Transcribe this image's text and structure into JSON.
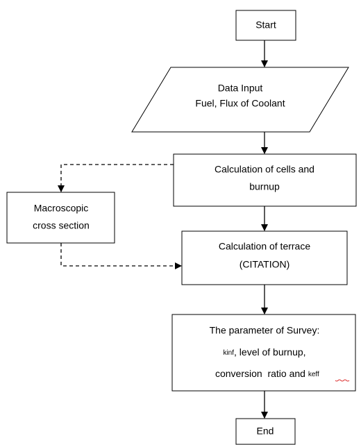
{
  "nodes": [
    {
      "label": "Start"
    },
    {
      "lines": [
        "Data Input",
        "Fuel, Flux of Coolant"
      ]
    },
    {
      "lines": [
        "Calculation of cells and",
        "burnup"
      ]
    },
    {
      "lines": [
        "Macroscopic",
        "cross section"
      ]
    },
    {
      "lines": [
        "Calculation of terrace",
        "(CITATION)"
      ]
    },
    {
      "lines": [
        "The parameter of Survey:",
        "k",
        "inf",
        ", level of burnup,",
        "conversion  ratio and ",
        "k",
        "eff"
      ]
    },
    {
      "label": "End"
    }
  ]
}
